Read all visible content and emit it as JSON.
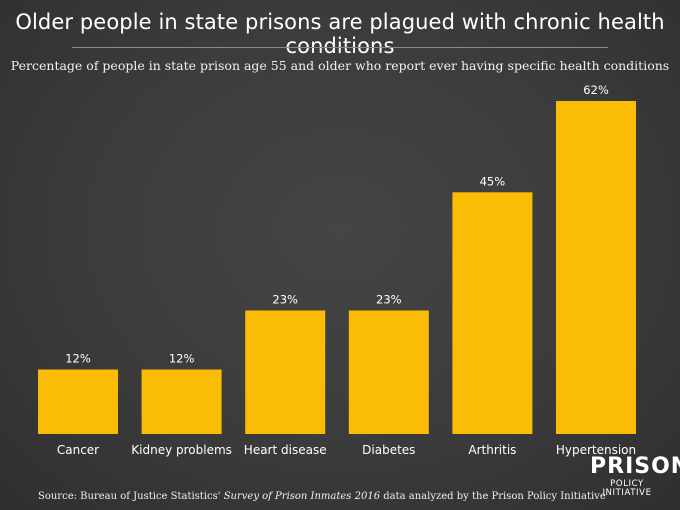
{
  "title": "Older people in state prisons are plagued with chronic health conditions",
  "subtitle": "Percentage of people in state prison age 55 and older who report ever having specific health conditions",
  "source": {
    "prefix": "Source: Bureau of Justice Statistics' ",
    "italic": "Survey of Prison Inmates 2016",
    "suffix": " data analyzed by the Prison Policy Initiative"
  },
  "logo": {
    "line1": "PRISON",
    "line2": "POLICY INITIATIVE"
  },
  "colors": {
    "bar": "#fbbc05",
    "background": "#3d3d3d",
    "text": "#ffffff"
  },
  "chart_data": {
    "type": "bar",
    "title": "Older people in state prisons are plagued with chronic health conditions",
    "subtitle": "Percentage of people in state prison age 55 and older who report ever having specific health conditions",
    "categories": [
      "Cancer",
      "Kidney problems",
      "Heart disease",
      "Diabetes",
      "Arthritis",
      "Hypertension"
    ],
    "values": [
      12,
      12,
      23,
      23,
      45,
      62
    ],
    "data_labels": [
      "12%",
      "12%",
      "23%",
      "23%",
      "45%",
      "62%"
    ],
    "ylim": [
      0,
      62
    ],
    "grid": false,
    "legend": "none"
  }
}
